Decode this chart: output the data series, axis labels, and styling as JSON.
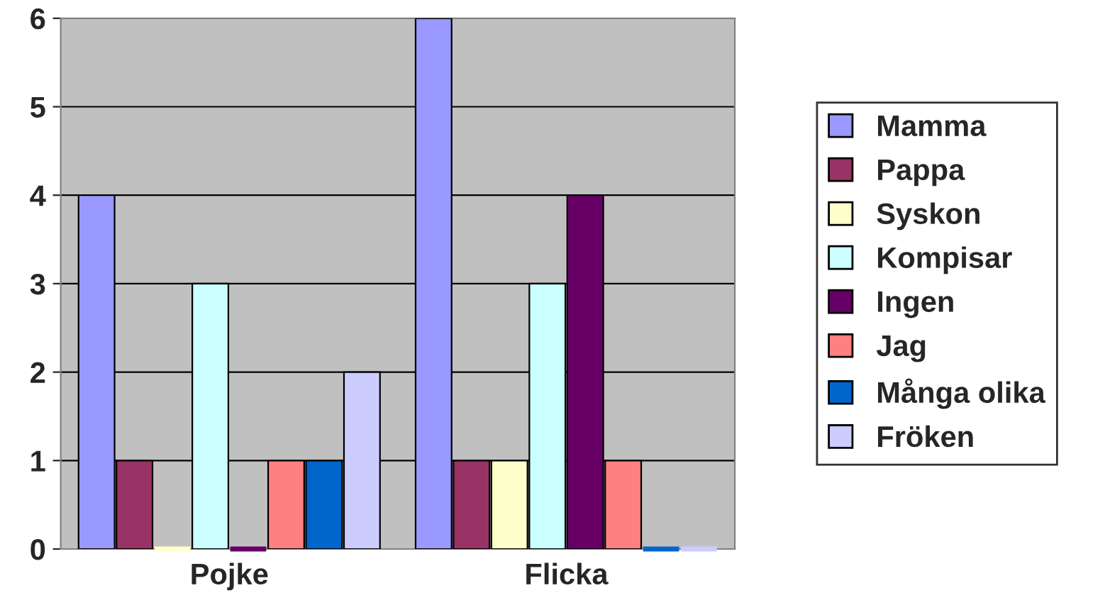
{
  "chart_data": {
    "type": "bar",
    "categories": [
      "Pojke",
      "Flicka"
    ],
    "series": [
      {
        "name": "Mamma",
        "color": "#9999ff",
        "values": [
          4,
          6
        ]
      },
      {
        "name": "Pappa",
        "color": "#993366",
        "values": [
          1,
          1
        ]
      },
      {
        "name": "Syskon",
        "color": "#ffffcc",
        "values": [
          0,
          1
        ]
      },
      {
        "name": "Kompisar",
        "color": "#ccffff",
        "values": [
          3,
          3
        ]
      },
      {
        "name": "Ingen",
        "color": "#660066",
        "values": [
          0,
          4
        ]
      },
      {
        "name": "Jag",
        "color": "#ff8080",
        "values": [
          1,
          1
        ]
      },
      {
        "name": "Många olika",
        "color": "#0066cc",
        "values": [
          1,
          0
        ]
      },
      {
        "name": "Fröken",
        "color": "#ccccff",
        "values": [
          2,
          0
        ]
      }
    ],
    "ylim": [
      0,
      6
    ],
    "yticks": [
      0,
      1,
      2,
      3,
      4,
      5,
      6
    ],
    "grid": "y",
    "legend": "right"
  }
}
